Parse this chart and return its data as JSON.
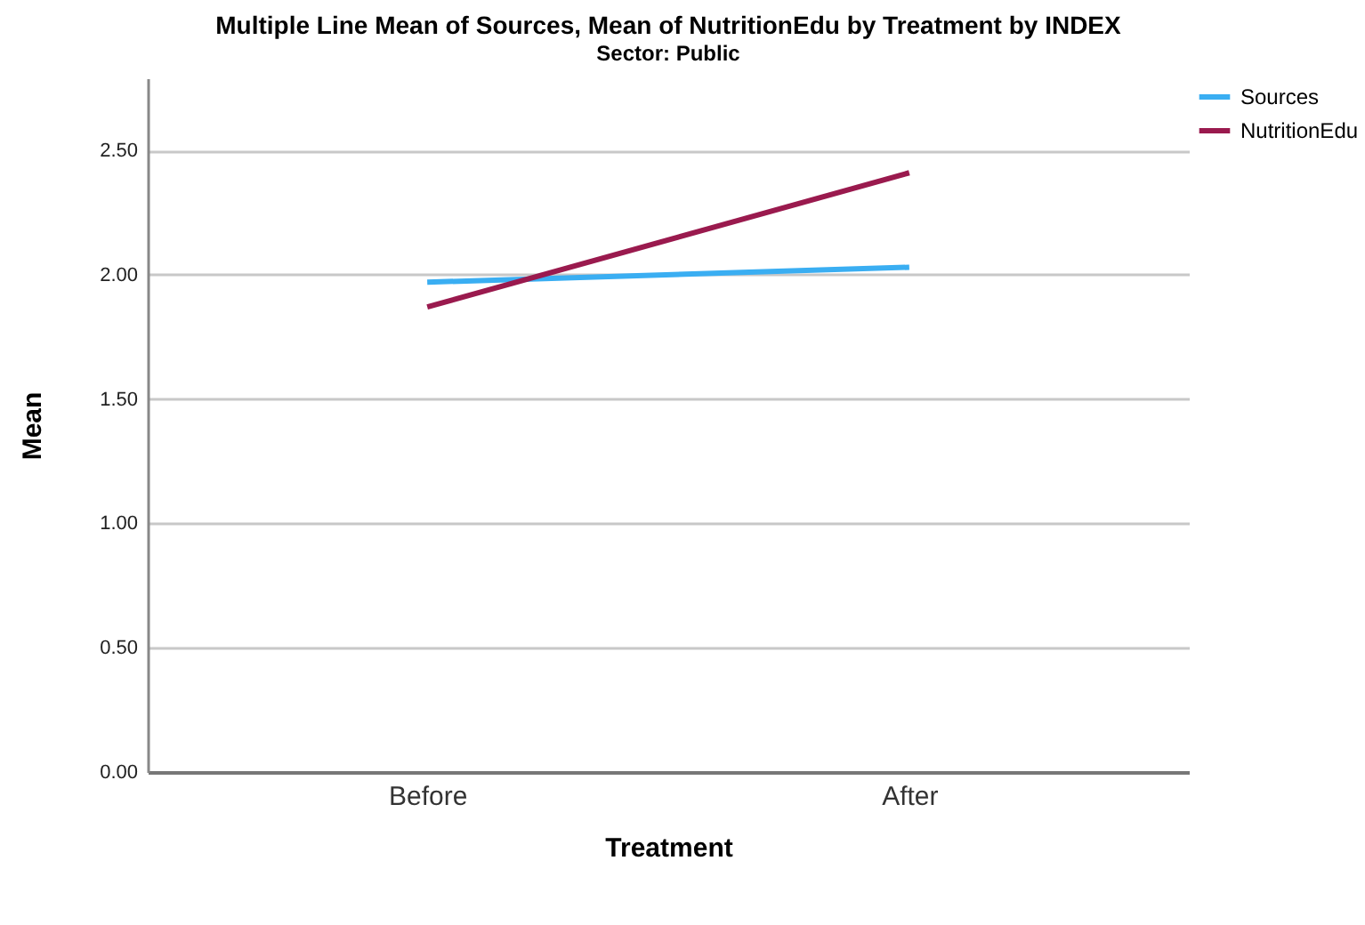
{
  "chart_data": {
    "type": "line",
    "title": "Multiple Line Mean of Sources, Mean of NutritionEdu by Treatment by INDEX",
    "subtitle": "Sector: Public",
    "xlabel": "Treatment",
    "ylabel": "Mean",
    "categories": [
      "Before",
      "After"
    ],
    "series": [
      {
        "name": "Sources",
        "color": "#3aaef2",
        "values": [
          1.97,
          2.03
        ]
      },
      {
        "name": "NutritionEdu",
        "color": "#9a1a4e",
        "values": [
          1.87,
          2.41
        ]
      }
    ],
    "ylim": [
      0,
      2.79
    ],
    "yticks": [
      {
        "value": 0,
        "label": "0.00"
      },
      {
        "value": 0.5,
        "label": "0.50"
      },
      {
        "value": 1,
        "label": "1.00"
      },
      {
        "value": 1.5,
        "label": "1.50"
      },
      {
        "value": 2,
        "label": "2.00"
      },
      {
        "value": 2.5,
        "label": "2.50"
      }
    ],
    "grid": "y",
    "legend": "top right",
    "marker": "none",
    "line_style": "solid"
  }
}
